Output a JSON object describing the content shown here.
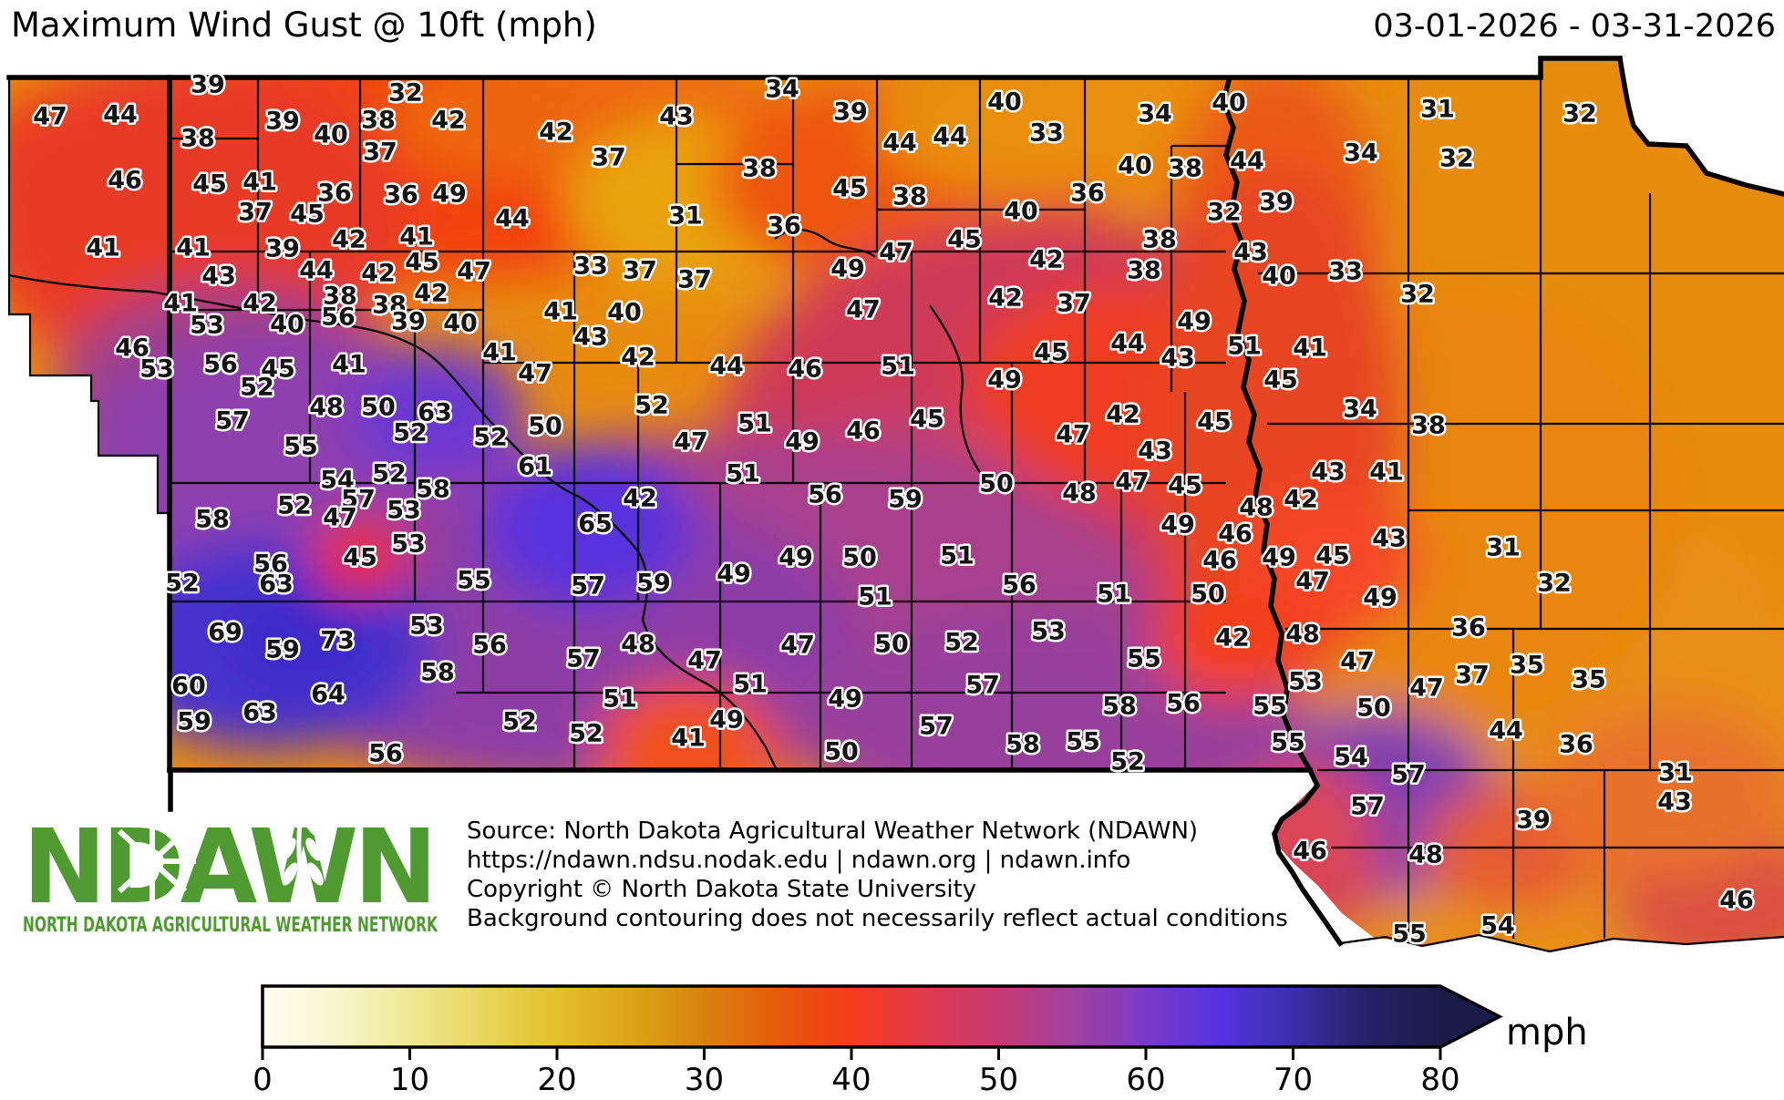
{
  "header": {
    "title": "Maximum Wind Gust @ 10ft (mph)",
    "date_range": "03-01-2026 - 03-31-2026"
  },
  "logo": {
    "name": "NDAWN",
    "tagline": "NORTH DAKOTA AGRICULTURAL WEATHER NETWORK",
    "color": "#4f9b31"
  },
  "source_text": {
    "line1": "Source: North Dakota Agricultural Weather Network (NDAWN)",
    "line2": "https://ndawn.ndsu.nodak.edu | ndawn.org | ndawn.info",
    "line3": "Copyright © North Dakota State University",
    "line4": "Background contouring does not necessarily reflect actual conditions"
  },
  "colorbar": {
    "unit": "mph",
    "min": 0,
    "max": 80,
    "ticks": [
      0,
      10,
      20,
      30,
      40,
      50,
      60,
      70,
      80
    ],
    "stops": [
      {
        "v": 0,
        "c": "#fffef2"
      },
      {
        "v": 5,
        "c": "#f9f6cd"
      },
      {
        "v": 10,
        "c": "#efe893"
      },
      {
        "v": 15,
        "c": "#e8d65e"
      },
      {
        "v": 20,
        "c": "#e2c12a"
      },
      {
        "v": 25,
        "c": "#dda414"
      },
      {
        "v": 30,
        "c": "#d8820e"
      },
      {
        "v": 35,
        "c": "#e75b0a"
      },
      {
        "v": 40,
        "c": "#f53b1b"
      },
      {
        "v": 45,
        "c": "#e13a4c"
      },
      {
        "v": 50,
        "c": "#c63a72"
      },
      {
        "v": 55,
        "c": "#a2409e"
      },
      {
        "v": 60,
        "c": "#7b3ac7"
      },
      {
        "v": 65,
        "c": "#5532e0"
      },
      {
        "v": 70,
        "c": "#392fab"
      },
      {
        "v": 75,
        "c": "#262167"
      },
      {
        "v": 80,
        "c": "#1b1b49"
      }
    ]
  },
  "map_values_format": "[wind_gust_mph, x, y]",
  "map_values": [
    [
      47,
      55,
      128
    ],
    [
      44,
      132,
      126
    ],
    [
      39,
      228,
      93
    ],
    [
      38,
      217,
      152
    ],
    [
      32,
      445,
      102
    ],
    [
      38,
      415,
      132
    ],
    [
      39,
      310,
      133
    ],
    [
      40,
      363,
      148
    ],
    [
      42,
      492,
      132
    ],
    [
      42,
      610,
      145
    ],
    [
      43,
      742,
      128
    ],
    [
      34,
      858,
      98
    ],
    [
      39,
      933,
      123
    ],
    [
      37,
      417,
      167
    ],
    [
      37,
      668,
      173
    ],
    [
      38,
      833,
      185
    ],
    [
      44,
      987,
      157
    ],
    [
      44,
      1042,
      150
    ],
    [
      40,
      1102,
      112
    ],
    [
      33,
      1148,
      146
    ],
    [
      34,
      1267,
      125
    ],
    [
      40,
      1348,
      113
    ],
    [
      44,
      1368,
      177
    ],
    [
      40,
      1245,
      182
    ],
    [
      38,
      1300,
      185
    ],
    [
      31,
      1577,
      120
    ],
    [
      32,
      1733,
      125
    ],
    [
      34,
      1493,
      168
    ],
    [
      32,
      1598,
      174
    ],
    [
      46,
      137,
      198
    ],
    [
      45,
      230,
      202
    ],
    [
      41,
      285,
      200
    ],
    [
      36,
      367,
      212
    ],
    [
      36,
      440,
      214
    ],
    [
      49,
      493,
      213
    ],
    [
      37,
      280,
      233
    ],
    [
      45,
      337,
      235
    ],
    [
      45,
      932,
      207
    ],
    [
      38,
      998,
      216
    ],
    [
      36,
      1193,
      212
    ],
    [
      40,
      1120,
      232
    ],
    [
      32,
      1343,
      233
    ],
    [
      39,
      1400,
      222
    ],
    [
      41,
      113,
      272
    ],
    [
      41,
      212,
      272
    ],
    [
      39,
      310,
      273
    ],
    [
      42,
      383,
      263
    ],
    [
      41,
      457,
      260
    ],
    [
      44,
      562,
      240
    ],
    [
      31,
      752,
      237
    ],
    [
      36,
      860,
      248
    ],
    [
      43,
      240,
      303
    ],
    [
      44,
      347,
      297
    ],
    [
      42,
      415,
      300
    ],
    [
      45,
      463,
      288
    ],
    [
      47,
      520,
      298
    ],
    [
      33,
      648,
      292
    ],
    [
      37,
      702,
      297
    ],
    [
      37,
      762,
      307
    ],
    [
      49,
      930,
      295
    ],
    [
      45,
      1058,
      263
    ],
    [
      47,
      983,
      277
    ],
    [
      38,
      1272,
      263
    ],
    [
      43,
      1372,
      277
    ],
    [
      42,
      1148,
      285
    ],
    [
      38,
      1255,
      297
    ],
    [
      40,
      1403,
      303
    ],
    [
      33,
      1476,
      298
    ],
    [
      32,
      1555,
      323
    ],
    [
      41,
      198,
      333
    ],
    [
      42,
      285,
      333
    ],
    [
      38,
      373,
      325
    ],
    [
      38,
      427,
      335
    ],
    [
      42,
      473,
      322
    ],
    [
      53,
      227,
      357
    ],
    [
      40,
      315,
      356
    ],
    [
      56,
      371,
      348
    ],
    [
      39,
      448,
      353
    ],
    [
      40,
      505,
      355
    ],
    [
      41,
      615,
      342
    ],
    [
      40,
      685,
      343
    ],
    [
      43,
      648,
      370
    ],
    [
      42,
      1103,
      327
    ],
    [
      37,
      1178,
      333
    ],
    [
      49,
      1310,
      353
    ],
    [
      47,
      947,
      340
    ],
    [
      46,
      145,
      382
    ],
    [
      53,
      172,
      405
    ],
    [
      56,
      242,
      400
    ],
    [
      45,
      305,
      405
    ],
    [
      41,
      383,
      400
    ],
    [
      52,
      282,
      425
    ],
    [
      41,
      548,
      387
    ],
    [
      42,
      700,
      392
    ],
    [
      47,
      587,
      410
    ],
    [
      44,
      797,
      402
    ],
    [
      46,
      883,
      405
    ],
    [
      45,
      1153,
      387
    ],
    [
      51,
      985,
      402
    ],
    [
      49,
      1102,
      417
    ],
    [
      44,
      1237,
      377
    ],
    [
      43,
      1292,
      393
    ],
    [
      51,
      1365,
      380
    ],
    [
      41,
      1437,
      382
    ],
    [
      45,
      1405,
      417
    ],
    [
      34,
      1492,
      449
    ],
    [
      38,
      1567,
      467
    ],
    [
      57,
      255,
      462
    ],
    [
      48,
      358,
      447
    ],
    [
      50,
      415,
      447
    ],
    [
      63,
      477,
      453
    ],
    [
      52,
      450,
      475
    ],
    [
      52,
      538,
      480
    ],
    [
      50,
      598,
      468
    ],
    [
      52,
      715,
      445
    ],
    [
      47,
      758,
      485
    ],
    [
      51,
      828,
      465
    ],
    [
      49,
      880,
      485
    ],
    [
      46,
      947,
      473
    ],
    [
      45,
      1017,
      460
    ],
    [
      47,
      1177,
      477
    ],
    [
      42,
      1232,
      455
    ],
    [
      45,
      1332,
      463
    ],
    [
      43,
      1267,
      495
    ],
    [
      43,
      1457,
      518
    ],
    [
      41,
      1521,
      518
    ],
    [
      55,
      330,
      490
    ],
    [
      54,
      370,
      527
    ],
    [
      52,
      427,
      520
    ],
    [
      58,
      475,
      537
    ],
    [
      52,
      323,
      555
    ],
    [
      57,
      393,
      548
    ],
    [
      47,
      373,
      568
    ],
    [
      53,
      443,
      560
    ],
    [
      61,
      587,
      512
    ],
    [
      51,
      815,
      520
    ],
    [
      56,
      905,
      543
    ],
    [
      50,
      1093,
      531
    ],
    [
      59,
      993,
      548
    ],
    [
      48,
      1184,
      541
    ],
    [
      47,
      1242,
      529
    ],
    [
      45,
      1300,
      533
    ],
    [
      48,
      1378,
      557
    ],
    [
      42,
      1427,
      548
    ],
    [
      43,
      1524,
      591
    ],
    [
      31,
      1649,
      601
    ],
    [
      58,
      233,
      570
    ],
    [
      52,
      200,
      640
    ],
    [
      56,
      297,
      619
    ],
    [
      63,
      303,
      641
    ],
    [
      45,
      395,
      612
    ],
    [
      53,
      448,
      597
    ],
    [
      42,
      702,
      547
    ],
    [
      65,
      653,
      575
    ],
    [
      55,
      520,
      637
    ],
    [
      57,
      645,
      643
    ],
    [
      59,
      717,
      640
    ],
    [
      49,
      805,
      630
    ],
    [
      49,
      873,
      612
    ],
    [
      50,
      943,
      612
    ],
    [
      49,
      1292,
      576
    ],
    [
      46,
      1355,
      586
    ],
    [
      46,
      1338,
      615
    ],
    [
      49,
      1403,
      612
    ],
    [
      51,
      1050,
      610
    ],
    [
      45,
      1462,
      610
    ],
    [
      32,
      1705,
      640
    ],
    [
      47,
      1440,
      638
    ],
    [
      49,
      1514,
      656
    ],
    [
      51,
      960,
      655
    ],
    [
      56,
      1118,
      642
    ],
    [
      51,
      1222,
      652
    ],
    [
      50,
      1325,
      652
    ],
    [
      69,
      247,
      694
    ],
    [
      59,
      310,
      713
    ],
    [
      73,
      370,
      703
    ],
    [
      53,
      468,
      687
    ],
    [
      60,
      207,
      753
    ],
    [
      64,
      360,
      762
    ],
    [
      58,
      480,
      738
    ],
    [
      59,
      213,
      792
    ],
    [
      63,
      285,
      782
    ],
    [
      56,
      423,
      827
    ],
    [
      56,
      537,
      708
    ],
    [
      48,
      700,
      707
    ],
    [
      57,
      640,
      723
    ],
    [
      47,
      773,
      725
    ],
    [
      47,
      875,
      708
    ],
    [
      50,
      978,
      707
    ],
    [
      52,
      1055,
      705
    ],
    [
      53,
      1150,
      693
    ],
    [
      55,
      1255,
      723
    ],
    [
      42,
      1352,
      700
    ],
    [
      48,
      1429,
      696
    ],
    [
      36,
      1611,
      689
    ],
    [
      47,
      1489,
      726
    ],
    [
      35,
      1675,
      730
    ],
    [
      35,
      1743,
      746
    ],
    [
      37,
      1615,
      741
    ],
    [
      47,
      1565,
      755
    ],
    [
      53,
      1432,
      748
    ],
    [
      51,
      680,
      767
    ],
    [
      51,
      823,
      751
    ],
    [
      49,
      927,
      767
    ],
    [
      52,
      570,
      792
    ],
    [
      52,
      643,
      805
    ],
    [
      49,
      797,
      790
    ],
    [
      41,
      755,
      810
    ],
    [
      50,
      923,
      825
    ],
    [
      57,
      1078,
      752
    ],
    [
      57,
      1027,
      797
    ],
    [
      58,
      1228,
      775
    ],
    [
      56,
      1298,
      772
    ],
    [
      55,
      1393,
      775
    ],
    [
      58,
      1122,
      817
    ],
    [
      55,
      1188,
      814
    ],
    [
      52,
      1237,
      836
    ],
    [
      55,
      1413,
      815
    ],
    [
      50,
      1507,
      777
    ],
    [
      44,
      1652,
      802
    ],
    [
      36,
      1729,
      817
    ],
    [
      54,
      1482,
      831
    ],
    [
      57,
      1545,
      850
    ],
    [
      57,
      1500,
      885
    ],
    [
      31,
      1838,
      848
    ],
    [
      43,
      1837,
      880
    ],
    [
      39,
      1682,
      900
    ],
    [
      46,
      1437,
      934
    ],
    [
      48,
      1564,
      938
    ],
    [
      46,
      1905,
      988
    ],
    [
      55,
      1546,
      1025
    ],
    [
      54,
      1643,
      1016
    ]
  ]
}
